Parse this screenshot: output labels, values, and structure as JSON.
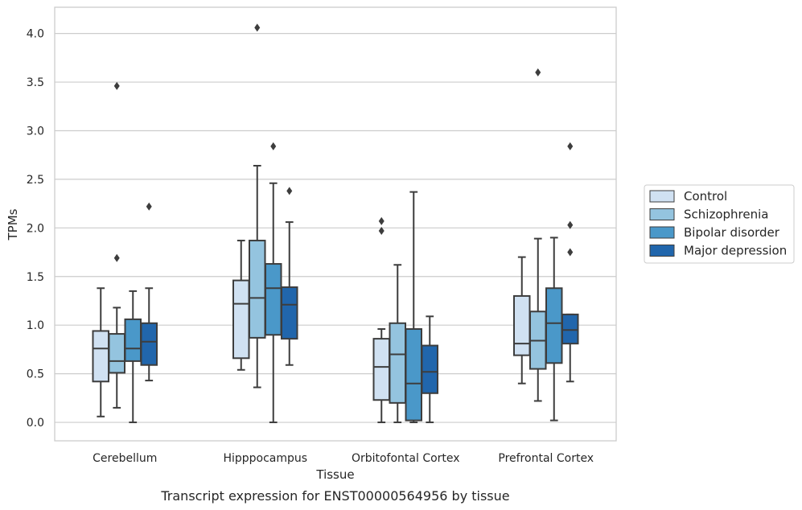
{
  "caption": "Transcript expression for ENST00000564956 by tissue",
  "chart_data": {
    "type": "box",
    "title": "",
    "xlabel": "Tissue",
    "ylabel": "TPMs",
    "ylim": [
      -0.19,
      4.27
    ],
    "yticks": [
      "0.0",
      "0.5",
      "1.0",
      "1.5",
      "2.0",
      "2.5",
      "3.0",
      "3.5",
      "4.0"
    ],
    "grid": "horizontal",
    "legend_placement": "right",
    "categories": [
      "Cerebellum",
      "Hipppocampus",
      "Orbitofontal Cortex",
      "Prefrontal Cortex"
    ],
    "series": [
      {
        "name": "Control",
        "color": "#d0e1f2",
        "boxes": [
          {
            "whislo": 0.06,
            "q1": 0.42,
            "med": 0.76,
            "q3": 0.94,
            "whishi": 1.38,
            "fliers": []
          },
          {
            "whislo": 0.54,
            "q1": 0.66,
            "med": 1.22,
            "q3": 1.46,
            "whishi": 1.87,
            "fliers": []
          },
          {
            "whislo": 0.0,
            "q1": 0.23,
            "med": 0.57,
            "q3": 0.86,
            "whishi": 0.96,
            "fliers": [
              1.97,
              2.07
            ]
          },
          {
            "whislo": 0.4,
            "q1": 0.69,
            "med": 0.81,
            "q3": 1.3,
            "whishi": 1.7,
            "fliers": []
          }
        ]
      },
      {
        "name": "Schizophrenia",
        "color": "#94c4df",
        "boxes": [
          {
            "whislo": 0.15,
            "q1": 0.51,
            "med": 0.63,
            "q3": 0.91,
            "whishi": 1.18,
            "fliers": [
              1.69,
              3.46
            ]
          },
          {
            "whislo": 0.36,
            "q1": 0.87,
            "med": 1.28,
            "q3": 1.87,
            "whishi": 2.64,
            "fliers": [
              4.06
            ]
          },
          {
            "whislo": 0.0,
            "q1": 0.2,
            "med": 0.7,
            "q3": 1.02,
            "whishi": 1.62,
            "fliers": []
          },
          {
            "whislo": 0.22,
            "q1": 0.55,
            "med": 0.84,
            "q3": 1.14,
            "whishi": 1.89,
            "fliers": [
              3.6
            ]
          }
        ]
      },
      {
        "name": "Bipolar disorder",
        "color": "#4a98c9",
        "boxes": [
          {
            "whislo": 0.0,
            "q1": 0.63,
            "med": 0.76,
            "q3": 1.06,
            "whishi": 1.35,
            "fliers": []
          },
          {
            "whislo": 0.0,
            "q1": 0.9,
            "med": 1.38,
            "q3": 1.63,
            "whishi": 2.46,
            "fliers": [
              2.84
            ]
          },
          {
            "whislo": 0.0,
            "q1": 0.02,
            "med": 0.4,
            "q3": 0.96,
            "whishi": 2.37,
            "fliers": []
          },
          {
            "whislo": 0.02,
            "q1": 0.61,
            "med": 1.02,
            "q3": 1.38,
            "whishi": 1.9,
            "fliers": []
          }
        ]
      },
      {
        "name": "Major depression",
        "color": "#2166ac",
        "boxes": [
          {
            "whislo": 0.43,
            "q1": 0.59,
            "med": 0.83,
            "q3": 1.02,
            "whishi": 1.38,
            "fliers": [
              2.22
            ]
          },
          {
            "whislo": 0.59,
            "q1": 0.86,
            "med": 1.21,
            "q3": 1.39,
            "whishi": 2.06,
            "fliers": [
              2.38
            ]
          },
          {
            "whislo": 0.0,
            "q1": 0.3,
            "med": 0.52,
            "q3": 0.79,
            "whishi": 1.09,
            "fliers": []
          },
          {
            "whislo": 0.42,
            "q1": 0.81,
            "med": 0.95,
            "q3": 1.11,
            "whishi": 1.11,
            "fliers": [
              1.75,
              2.03,
              2.84
            ]
          }
        ]
      }
    ]
  }
}
